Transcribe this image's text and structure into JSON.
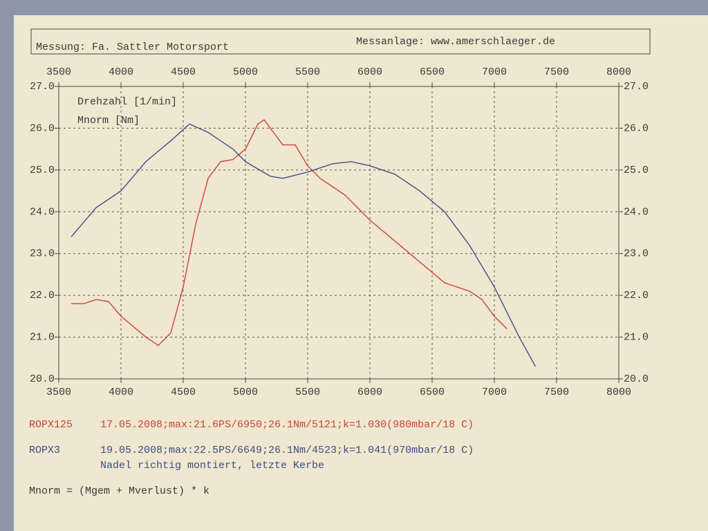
{
  "chart_data": {
    "type": "line",
    "header_left": "Messung: Fa. Sattler Motorsport",
    "header_right": "Messanlage: www.amerschlaeger.de",
    "axis_labels": [
      "Drehzahl [1/min]",
      "Mnorm [Nm]"
    ],
    "xlim": [
      3500,
      8000
    ],
    "xticks": [
      3500,
      4000,
      4500,
      5000,
      5500,
      6000,
      6500,
      7000,
      7500,
      8000
    ],
    "ylim": [
      20,
      27
    ],
    "yticks": [
      {
        "value": 20,
        "label": "20.0"
      },
      {
        "value": 21,
        "label": "21.0"
      },
      {
        "value": 22,
        "label": "22.0"
      },
      {
        "value": 23,
        "label": "23.0"
      },
      {
        "value": 24,
        "label": "24.0"
      },
      {
        "value": 25,
        "label": "25.0"
      },
      {
        "value": 26,
        "label": "26.0"
      },
      {
        "value": 27,
        "label": "27.0"
      }
    ],
    "grid": true,
    "series": [
      {
        "name": "ROPX125",
        "color": "#c8443a",
        "info": "17.05.2008;max:21.6PS/6950;26.1Nm/5121;k=1.030(980mbar/18 C)",
        "x": [
          3600,
          3700,
          3800,
          3900,
          4000,
          4200,
          4300,
          4400,
          4500,
          4600,
          4700,
          4800,
          4900,
          5000,
          5100,
          5150,
          5250,
          5300,
          5400,
          5500,
          5600,
          5800,
          6000,
          6200,
          6400,
          6600,
          6800,
          6900,
          7000,
          7100
        ],
        "values": [
          21.8,
          21.8,
          21.9,
          21.85,
          21.5,
          21.0,
          20.8,
          21.1,
          22.2,
          23.7,
          24.8,
          25.2,
          25.25,
          25.5,
          26.1,
          26.2,
          25.8,
          25.6,
          25.6,
          25.1,
          24.8,
          24.4,
          23.8,
          23.3,
          22.8,
          22.3,
          22.1,
          21.9,
          21.5,
          21.2
        ]
      },
      {
        "name": "ROPX3",
        "color": "#3f4d86",
        "info": "19.05.2008;max:22.5PS/6649;26.1Nm/4523;k=1.041(970mbar/18 C)",
        "x": [
          3600,
          3800,
          4000,
          4200,
          4400,
          4550,
          4700,
          4900,
          5000,
          5200,
          5300,
          5500,
          5700,
          5850,
          6000,
          6200,
          6400,
          6600,
          6800,
          7000,
          7200,
          7330
        ],
        "values": [
          23.4,
          24.1,
          24.5,
          25.2,
          25.7,
          26.1,
          25.9,
          25.5,
          25.2,
          24.85,
          24.8,
          24.95,
          25.15,
          25.2,
          25.1,
          24.9,
          24.5,
          24.0,
          23.2,
          22.2,
          21.0,
          20.3
        ]
      }
    ],
    "notes": [
      "Nadel richtig montiert, letzte Kerbe",
      "Mnorm = (Mgem + Mverlust) * k"
    ]
  }
}
